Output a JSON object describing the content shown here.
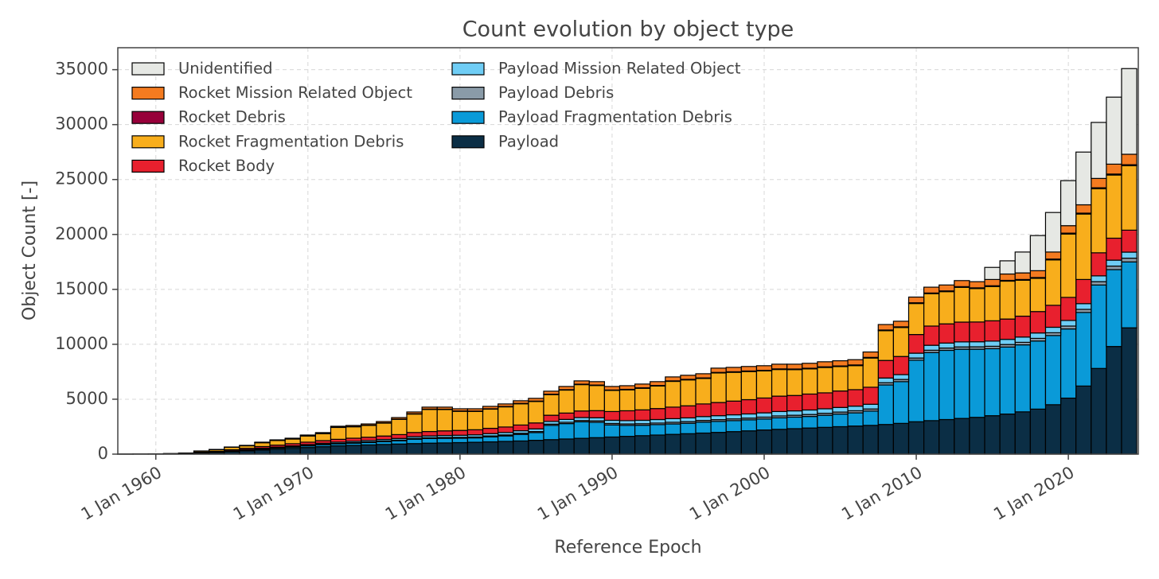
{
  "chart_data": {
    "type": "histogram",
    "stacked": true,
    "title": "Count evolution by object type",
    "xlabel": "Reference Epoch",
    "ylabel": "Object Count [-]",
    "xlim": [
      1957.5,
      2024.6
    ],
    "ylim": [
      0,
      37000
    ],
    "xticks": [
      {
        "value": 1960,
        "label": "1 Jan 1960"
      },
      {
        "value": 1970,
        "label": "1 Jan 1970"
      },
      {
        "value": 1980,
        "label": "1 Jan 1980"
      },
      {
        "value": 1990,
        "label": "1 Jan 1990"
      },
      {
        "value": 2000,
        "label": "1 Jan 2000"
      },
      {
        "value": 2010,
        "label": "1 Jan 2010"
      },
      {
        "value": 2020,
        "label": "1 Jan 2020"
      }
    ],
    "yticks": [
      0,
      5000,
      10000,
      15000,
      20000,
      25000,
      30000,
      35000
    ],
    "grid": true,
    "legend": "upper left",
    "bins": [
      1957.5,
      1958.5,
      1959.5,
      1960.5,
      1961.5,
      1962.5,
      1963.5,
      1964.5,
      1965.5,
      1966.5,
      1967.5,
      1968.5,
      1969.5,
      1970.5,
      1971.5,
      1972.5,
      1973.5,
      1974.5,
      1975.5,
      1976.5,
      1977.5,
      1978.5,
      1979.5,
      1980.5,
      1981.5,
      1982.5,
      1983.5,
      1984.5,
      1985.5,
      1986.5,
      1987.5,
      1988.5,
      1989.5,
      1990.5,
      1991.5,
      1992.5,
      1993.5,
      1994.5,
      1995.5,
      1996.5,
      1997.5,
      1998.5,
      1999.5,
      2000.5,
      2001.5,
      2002.5,
      2003.5,
      2004.5,
      2005.5,
      2006.5,
      2007.5,
      2008.5,
      2009.5,
      2010.5,
      2011.5,
      2012.5,
      2013.5,
      2014.5,
      2015.5,
      2016.5,
      2017.5,
      2018.5,
      2019.5,
      2020.5,
      2021.5,
      2022.5,
      2023.5,
      2024.5
    ],
    "series": [
      {
        "name": "Payload",
        "color": "#0b2e45",
        "values": [
          1,
          5,
          15,
          30,
          60,
          100,
          150,
          220,
          300,
          380,
          450,
          520,
          600,
          680,
          760,
          800,
          840,
          880,
          920,
          960,
          1000,
          1020,
          1050,
          1080,
          1120,
          1160,
          1200,
          1260,
          1320,
          1380,
          1440,
          1500,
          1560,
          1620,
          1680,
          1740,
          1800,
          1860,
          1920,
          1980,
          2050,
          2120,
          2200,
          2260,
          2320,
          2380,
          2440,
          2500,
          2560,
          2620,
          2700,
          2800,
          2950,
          3050,
          3150,
          3250,
          3350,
          3500,
          3650,
          3850,
          4100,
          4500,
          5100,
          6200,
          7800,
          9800,
          11500
        ]
      },
      {
        "name": "Payload Fragmentation Debris",
        "color": "#0a9ad8",
        "values": [
          0,
          0,
          0,
          0,
          0,
          5,
          10,
          30,
          50,
          80,
          100,
          120,
          150,
          170,
          180,
          200,
          220,
          250,
          300,
          400,
          420,
          420,
          400,
          400,
          450,
          500,
          600,
          700,
          1300,
          1400,
          1500,
          1400,
          1100,
          1000,
          950,
          950,
          950,
          950,
          1000,
          1000,
          1000,
          1000,
          1000,
          1050,
          1050,
          1050,
          1100,
          1150,
          1200,
          1300,
          3600,
          3800,
          5600,
          6200,
          6300,
          6300,
          6200,
          6100,
          6100,
          6100,
          6200,
          6300,
          6300,
          6700,
          7600,
          7000,
          6000
        ]
      },
      {
        "name": "Payload Debris",
        "color": "#8a9ba8",
        "values": [
          0,
          0,
          0,
          0,
          0,
          0,
          5,
          10,
          10,
          20,
          20,
          30,
          30,
          40,
          40,
          50,
          50,
          60,
          60,
          70,
          70,
          80,
          80,
          80,
          90,
          90,
          100,
          100,
          110,
          120,
          120,
          130,
          130,
          130,
          140,
          140,
          150,
          150,
          150,
          160,
          160,
          160,
          170,
          170,
          170,
          180,
          180,
          180,
          190,
          190,
          200,
          200,
          200,
          210,
          210,
          210,
          220,
          220,
          230,
          230,
          240,
          250,
          260,
          280,
          300,
          320,
          340
        ]
      },
      {
        "name": "Payload Mission Related Object",
        "color": "#6fcdf5",
        "values": [
          0,
          0,
          0,
          5,
          10,
          20,
          30,
          40,
          50,
          60,
          70,
          80,
          90,
          100,
          110,
          120,
          130,
          140,
          150,
          160,
          170,
          180,
          190,
          200,
          210,
          220,
          230,
          240,
          250,
          260,
          270,
          280,
          290,
          300,
          310,
          320,
          330,
          340,
          350,
          360,
          370,
          380,
          390,
          400,
          400,
          410,
          410,
          420,
          420,
          430,
          430,
          440,
          440,
          450,
          450,
          460,
          460,
          470,
          470,
          480,
          490,
          500,
          510,
          520,
          530,
          540,
          550
        ]
      },
      {
        "name": "Rocket Body",
        "color": "#e8202e",
        "values": [
          2,
          3,
          3,
          10,
          20,
          50,
          70,
          100,
          120,
          150,
          180,
          200,
          220,
          240,
          260,
          280,
          300,
          320,
          350,
          380,
          400,
          420,
          440,
          460,
          480,
          500,
          520,
          540,
          560,
          580,
          600,
          650,
          800,
          900,
          950,
          1000,
          1050,
          1100,
          1150,
          1200,
          1250,
          1300,
          1350,
          1400,
          1400,
          1450,
          1450,
          1500,
          1500,
          1550,
          1600,
          1650,
          1700,
          1750,
          1750,
          1800,
          1800,
          1850,
          1850,
          1900,
          1950,
          2000,
          2100,
          2200,
          2100,
          2000,
          2000
        ]
      },
      {
        "name": "Rocket Fragmentation Debris",
        "color": "#f8ae1c",
        "values": [
          2,
          2,
          2,
          5,
          5,
          105,
          145,
          225,
          230,
          350,
          420,
          425,
          565,
          630,
          1080,
          1040,
          1075,
          1175,
          1385,
          1680,
          2010,
          1940,
          1740,
          1670,
          1745,
          1835,
          1935,
          1955,
          1880,
          2090,
          2400,
          2290,
          1920,
          1905,
          1965,
          2055,
          2345,
          2360,
          2320,
          2690,
          2620,
          2560,
          2465,
          2425,
          2355,
          2295,
          2310,
          2220,
          2190,
          2660,
          2710,
          2640,
          2825,
          2945,
          2935,
          3165,
          3040,
          3120,
          3450,
          3270,
          3025,
          4135,
          5770,
          5960,
          5835,
          5750,
          5865
        ]
      },
      {
        "name": "Rocket Debris",
        "color": "#97003a",
        "values": [
          0,
          0,
          0,
          0,
          0,
          0,
          5,
          5,
          10,
          10,
          10,
          15,
          15,
          20,
          20,
          20,
          25,
          25,
          25,
          30,
          30,
          30,
          30,
          30,
          35,
          35,
          35,
          35,
          40,
          40,
          40,
          40,
          40,
          45,
          45,
          45,
          45,
          50,
          50,
          50,
          50,
          50,
          55,
          55,
          55,
          55,
          60,
          60,
          60,
          60,
          60,
          60,
          65,
          65,
          65,
          65,
          70,
          70,
          70,
          70,
          75,
          75,
          80,
          80,
          85,
          90,
          95
        ]
      },
      {
        "name": "Rocket Mission Related Object",
        "color": "#f47b20",
        "values": [
          0,
          0,
          0,
          0,
          5,
          10,
          15,
          20,
          30,
          40,
          50,
          60,
          70,
          80,
          90,
          100,
          110,
          120,
          140,
          160,
          180,
          190,
          200,
          210,
          220,
          230,
          240,
          250,
          270,
          290,
          300,
          310,
          320,
          330,
          340,
          350,
          360,
          370,
          380,
          390,
          400,
          410,
          420,
          430,
          440,
          450,
          460,
          470,
          480,
          490,
          500,
          510,
          520,
          530,
          540,
          550,
          560,
          570,
          580,
          600,
          620,
          640,
          680,
          760,
          850,
          900,
          950
        ]
      },
      {
        "name": "Unidentified",
        "color": "#e6e8e4",
        "values": [
          0,
          0,
          0,
          0,
          0,
          0,
          0,
          0,
          0,
          0,
          0,
          0,
          0,
          0,
          0,
          0,
          0,
          0,
          0,
          0,
          0,
          0,
          0,
          0,
          0,
          0,
          0,
          0,
          0,
          0,
          0,
          0,
          0,
          0,
          0,
          0,
          0,
          0,
          0,
          0,
          0,
          0,
          0,
          0,
          0,
          0,
          0,
          0,
          0,
          0,
          0,
          0,
          0,
          0,
          0,
          0,
          0,
          1100,
          1200,
          1900,
          3200,
          3600,
          4100,
          4800,
          5100,
          6100,
          7800
        ]
      }
    ]
  }
}
